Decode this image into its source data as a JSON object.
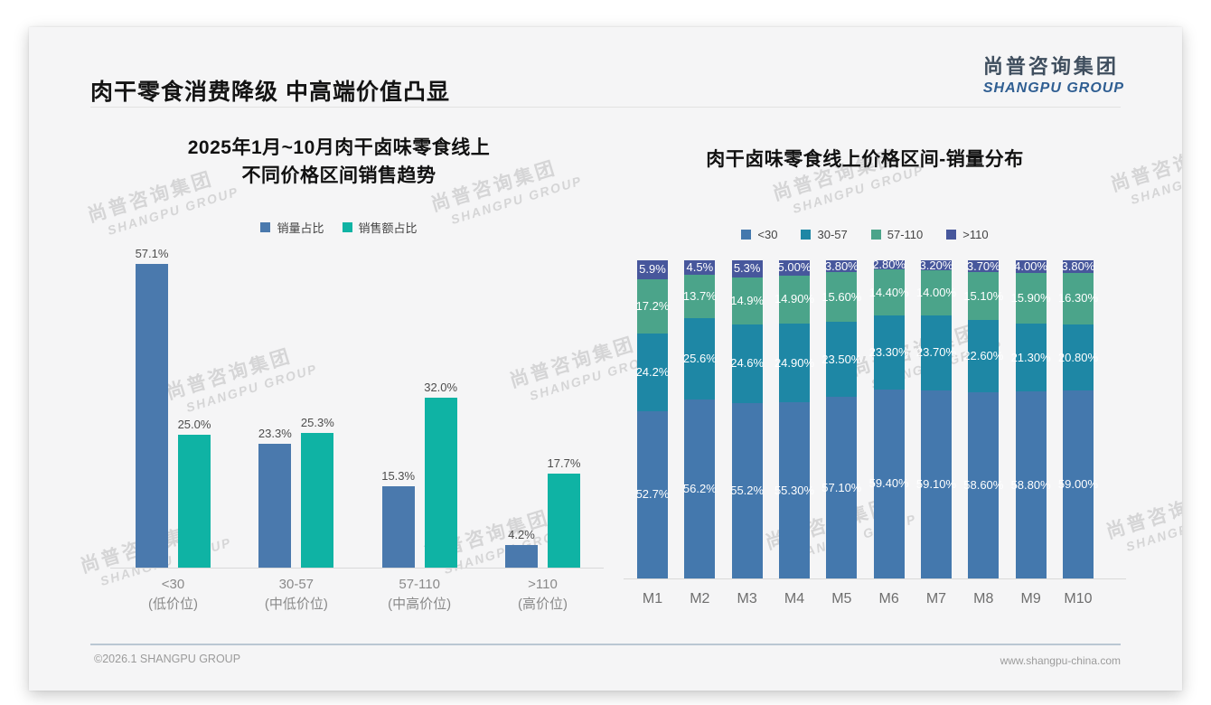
{
  "page": {
    "title": "肉干零食消费降级 中高端价值凸显",
    "logo": {
      "cn": "尚普咨询集团",
      "en": "SHANGPU GROUP"
    },
    "watermark": {
      "cn": "尚普咨询集团",
      "en": "SHANGPU GROUP"
    },
    "footer": {
      "left": "©2026.1 SHANGPU GROUP",
      "right": "www.shangpu-china.com"
    }
  },
  "colors": {
    "left_volume": "#4a79ad",
    "left_revenue": "#0fb3a4",
    "stack_lt30": "#4478ad",
    "stack_30_57": "#1e87a5",
    "stack_57_110": "#4ba48a",
    "stack_gt110": "#47579c",
    "axis": "#d9d9d9",
    "footer_rule": "#bac7d3",
    "logo_blue": "#2f5e92"
  },
  "chart_data": [
    {
      "type": "bar",
      "title": "2025年1月~10月肉干卤味零食线上\n不同价格区间销售趋势",
      "categories": [
        "<30",
        "30-57",
        "57-110",
        ">110"
      ],
      "category_sublabels": [
        "(低价位)",
        "(中低价位)",
        "(中高价位)",
        "(高价位)"
      ],
      "series": [
        {
          "name": "销量占比",
          "color": "#4a79ad",
          "values": [
            57.1,
            23.3,
            15.3,
            4.2
          ],
          "labels": [
            "57.1%",
            "23.3%",
            "15.3%",
            "4.2%"
          ]
        },
        {
          "name": "销售额占比",
          "color": "#0fb3a4",
          "values": [
            25.0,
            25.3,
            32.0,
            17.7
          ],
          "labels": [
            "25.0%",
            "25.3%",
            "32.0%",
            "17.7%"
          ]
        }
      ],
      "ylim": [
        0,
        60
      ],
      "grid": false,
      "legend_position": "top"
    },
    {
      "type": "bar",
      "stacked": true,
      "title": "肉干卤味零食线上价格区间-销量分布",
      "categories": [
        "M1",
        "M2",
        "M3",
        "M4",
        "M5",
        "M6",
        "M7",
        "M8",
        "M9",
        "M10"
      ],
      "series": [
        {
          "name": "<30",
          "color": "#4478ad",
          "values": [
            52.7,
            56.2,
            55.2,
            55.3,
            57.1,
            59.4,
            59.1,
            58.6,
            58.8,
            59.0
          ],
          "labels": [
            "52.7%",
            "56.2%",
            "55.2%",
            "55.30%",
            "57.10%",
            "59.40%",
            "59.10%",
            "58.60%",
            "58.80%",
            "59.00%"
          ]
        },
        {
          "name": "30-57",
          "color": "#1e87a5",
          "values": [
            24.2,
            25.6,
            24.6,
            24.9,
            23.5,
            23.3,
            23.7,
            22.6,
            21.3,
            20.8
          ],
          "labels": [
            "24.2%",
            "25.6%",
            "24.6%",
            "24.90%",
            "23.50%",
            "23.30%",
            "23.70%",
            "22.60%",
            "21.30%",
            "20.80%"
          ]
        },
        {
          "name": "57-110",
          "color": "#4ba48a",
          "values": [
            17.2,
            13.7,
            14.9,
            14.9,
            15.6,
            14.4,
            14.0,
            15.1,
            15.9,
            16.3
          ],
          "labels": [
            "17.2%",
            "13.7%",
            "14.9%",
            "14.90%",
            "15.60%",
            "14.40%",
            "14.00%",
            "15.10%",
            "15.90%",
            "16.30%"
          ]
        },
        {
          "name": ">110",
          "color": "#47579c",
          "values": [
            5.9,
            4.5,
            5.3,
            5.0,
            3.8,
            2.8,
            3.2,
            3.7,
            4.0,
            3.8
          ],
          "labels": [
            "5.9%",
            "4.5%",
            "5.3%",
            "5.00%",
            "3.80%",
            "2.80%",
            "3.20%",
            "3.70%",
            "4.00%",
            "3.80%"
          ]
        }
      ],
      "ylim": [
        0,
        100
      ],
      "grid": false,
      "legend_position": "top"
    }
  ]
}
